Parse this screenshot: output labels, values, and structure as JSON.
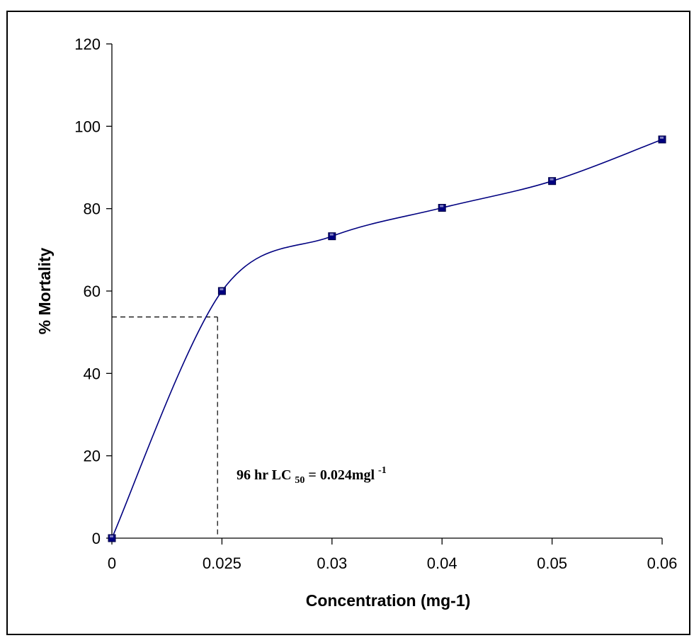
{
  "chart_data": {
    "type": "line",
    "title": "",
    "xlabel": "Concentration (mg-1)",
    "ylabel": "% Mortality",
    "x_tick_labels": [
      "0",
      "0.025",
      "0.03",
      "0.04",
      "0.05",
      "0.06"
    ],
    "y_ticks": [
      0,
      20,
      40,
      60,
      80,
      100,
      120
    ],
    "ylim": [
      0,
      120
    ],
    "x_scale": "categorical-evenly-spaced",
    "grid": false,
    "legend": "none",
    "series": [
      {
        "color": "#000080",
        "marker": "square",
        "smoothed": true,
        "values": [
          0,
          60,
          73.3,
          80.2,
          86.7,
          96.8
        ]
      }
    ],
    "lc50_marker": {
      "x": 0.024,
      "y": 53.7,
      "style": "dashed"
    },
    "annotation": {
      "prefix": "96 hr LC",
      "subscript": "50",
      "middle": " = 0.024mgl",
      "superscript": "-1"
    }
  }
}
